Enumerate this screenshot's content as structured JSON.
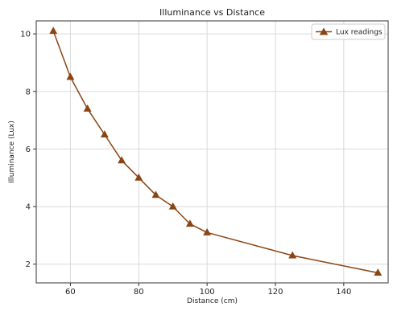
{
  "chart_data": {
    "type": "line",
    "title": "Illuminance vs Distance",
    "xlabel": "Distance (cm)",
    "ylabel": "Illuminance (Lux)",
    "xlim": [
      50,
      153
    ],
    "ylim": [
      1.35,
      10.45
    ],
    "xticks": [
      60,
      80,
      100,
      120,
      140
    ],
    "yticks": [
      2,
      4,
      6,
      8,
      10
    ],
    "grid": true,
    "legend_position": "top-right",
    "series": [
      {
        "name": "Lux readings",
        "color": "#8B4513",
        "marker": "triangle-up",
        "x": [
          55,
          60,
          65,
          70,
          75,
          80,
          85,
          90,
          95,
          100,
          125,
          150
        ],
        "y": [
          10.1,
          8.5,
          7.4,
          6.5,
          5.6,
          5.0,
          4.4,
          4.0,
          3.4,
          3.1,
          2.3,
          1.7
        ]
      }
    ]
  }
}
